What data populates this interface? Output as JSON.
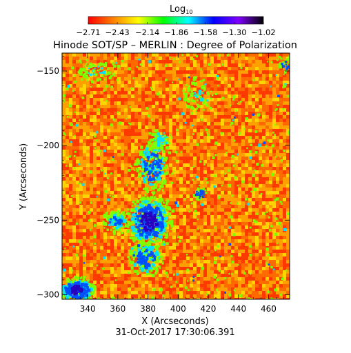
{
  "colorbar": {
    "title_main": "Log",
    "title_sub": "10",
    "ticks": [
      "-2.71",
      "-2.43",
      "-2.14",
      "-1.86",
      "-1.58",
      "-1.30",
      "-1.02"
    ],
    "range": [
      -2.71,
      -1.02
    ],
    "colors": [
      "#ff0000",
      "#ff8000",
      "#ffff00",
      "#00ff00",
      "#00ffff",
      "#0000ff",
      "#8000ff",
      "#000000"
    ]
  },
  "title": "Hinode SOT/SP – MERLIN : Degree of Polarization",
  "timestamp": "31-Oct-2017 17:30:06.391",
  "x_axis": {
    "label": "X (Arcseconds)",
    "range": [
      323,
      474
    ],
    "ticks": [
      340,
      360,
      380,
      400,
      420,
      440,
      460
    ]
  },
  "y_axis": {
    "label": "Y (Arcseconds)",
    "range": [
      -303,
      -138
    ],
    "ticks": [
      -150,
      -200,
      -250,
      -300
    ]
  },
  "map": {
    "background_colors": [
      "#ff3a00",
      "#ff6a00",
      "#ffa000",
      "#ffd400"
    ],
    "patch_colors": {
      "green": "#7cff00",
      "cyan": "#00e0ff",
      "blue": "#0050ff",
      "deep": "#2a00c0"
    }
  }
}
